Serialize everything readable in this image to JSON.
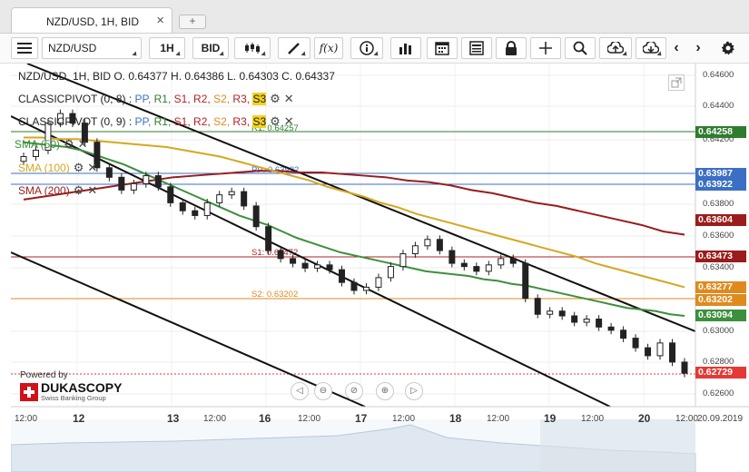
{
  "tab": {
    "title": "NZD/USD, 1H, BID",
    "close_icon": "×",
    "add_icon": "+"
  },
  "toolbar": {
    "menu_icon": "hamburger-menu-icon",
    "symbol": "NZD/USD",
    "period": "1H",
    "side": "BID",
    "buttons": [
      "chart-type-icon",
      "draw-line-icon",
      "function-icon",
      "info-icon",
      "volume-bars-icon",
      "calendar-icon",
      "news-icon",
      "lock-icon",
      "crosshair-icon",
      "zoom-icon",
      "upload-icon",
      "download-icon",
      "back-icon",
      "forward-icon",
      "settings-icon"
    ]
  },
  "legend": {
    "ohlc": "NZD/USD, 1H, BID   O. 0.64377 H. 0.64386 L. 0.64303 C. 0.64337",
    "pivot1_name": "CLASSICPIVOT (0, 8)",
    "pivot2_name": "CLASSICPIVOT (0, 9)",
    "pivot_sep": " : ",
    "pp": "PP,",
    "r1": "R1,",
    "s1": "S1,",
    "r2": "R2,",
    "s2": "S2,",
    "r3": "R3,",
    "s3": "S3",
    "sma50": "SMA (50)",
    "sma100": "SMA (100)",
    "sma200": "SMA (200)"
  },
  "colors": {
    "pp": "#3b6fc4",
    "r1": "#2e7d2e",
    "s1": "#b22222",
    "r2": "#b22222",
    "s2": "#e08a1e",
    "r3": "#b22222",
    "s3": "#e0b21e",
    "sma50": "#3d8f3d",
    "sma100": "#d4a81e",
    "sma200": "#9b1c1c",
    "current": "#e53935"
  },
  "chart_data": {
    "type": "line",
    "title": "NZD/USD, 1H, BID",
    "y_ticks": [
      "0.64600",
      "0.64400",
      "0.64200",
      "0.63800",
      "0.63600",
      "0.63400",
      "0.63000",
      "0.62800",
      "0.62600"
    ],
    "x_ticks": [
      "12:00",
      "12",
      "13",
      "12:00",
      "16",
      "12:00",
      "17",
      "12:00",
      "18",
      "12:00",
      "19",
      "12:00",
      "20",
      "12:00"
    ],
    "x_end_label": "20.09.2019",
    "levels": [
      {
        "name": "R1",
        "label": "R1: 0.64257",
        "value": 0.64257
      },
      {
        "name": "PP",
        "label": "PP: 0.63922",
        "value": 0.63922
      },
      {
        "name": "S1",
        "label": "S1: 0.63472",
        "value": 0.63472
      },
      {
        "name": "S2",
        "label": "S2: 0.63202",
        "value": 0.63202
      }
    ],
    "price_tags": [
      {
        "value": "0.64258",
        "color": "#2e7d2e"
      },
      {
        "value": "0.63987",
        "color": "#3b6fc4"
      },
      {
        "value": "0.63922",
        "color": "#3b6fc4"
      },
      {
        "value": "0.63604",
        "color": "#9b1c1c"
      },
      {
        "value": "0.63473",
        "color": "#9b1c1c"
      },
      {
        "value": "0.63277",
        "color": "#e08a1e"
      },
      {
        "value": "0.63202",
        "color": "#e08a1e"
      },
      {
        "value": "0.63094",
        "color": "#3d8f3d"
      },
      {
        "value": "0.62729",
        "color": "#e53935"
      }
    ],
    "close": [
      0.6409,
      0.6413,
      0.643,
      0.6436,
      0.643,
      0.6418,
      0.6402,
      0.6396,
      0.6388,
      0.6392,
      0.6397,
      0.639,
      0.638,
      0.6375,
      0.6372,
      0.638,
      0.6385,
      0.6387,
      0.6378,
      0.6365,
      0.635,
      0.6345,
      0.6342,
      0.6339,
      0.6341,
      0.6338,
      0.633,
      0.6325,
      0.6327,
      0.6333,
      0.634,
      0.6348,
      0.6353,
      0.6357,
      0.635,
      0.6342,
      0.634,
      0.6337,
      0.6341,
      0.6345,
      0.6342,
      0.632,
      0.631,
      0.6312,
      0.6309,
      0.6305,
      0.6307,
      0.6302,
      0.63,
      0.6295,
      0.6289,
      0.6284,
      0.6292,
      0.628,
      0.6273
    ],
    "sma50": [
      0.6418,
      0.6417,
      0.6416,
      0.6415,
      0.6413,
      0.641,
      0.6407,
      0.6404,
      0.64,
      0.6396,
      0.6392,
      0.6388,
      0.6384,
      0.638,
      0.6376,
      0.6372,
      0.6369,
      0.6366,
      0.6362,
      0.6358,
      0.6355,
      0.6352,
      0.6349,
      0.6347,
      0.6345,
      0.6343,
      0.6341,
      0.6339,
      0.6337,
      0.6336,
      0.6335,
      0.6334,
      0.6332,
      0.6331,
      0.6329,
      0.6328,
      0.6326,
      0.6324,
      0.6322,
      0.632,
      0.6318,
      0.6316,
      0.6314,
      0.6313,
      0.6312,
      0.631,
      0.6309
    ],
    "sma100": [
      0.6421,
      0.6421,
      0.642,
      0.642,
      0.6419,
      0.6418,
      0.6417,
      0.6416,
      0.6415,
      0.6413,
      0.6411,
      0.6409,
      0.6406,
      0.6403,
      0.64,
      0.6397,
      0.6394,
      0.639,
      0.6387,
      0.6384,
      0.638,
      0.6377,
      0.6373,
      0.637,
      0.6367,
      0.6364,
      0.6361,
      0.6358,
      0.6355,
      0.6352,
      0.6349,
      0.6346,
      0.6342,
      0.6339,
      0.6336,
      0.6333,
      0.633,
      0.6327
    ],
    "sma200": [
      0.6382,
      0.6384,
      0.6386,
      0.6388,
      0.639,
      0.6392,
      0.6394,
      0.6396,
      0.6397,
      0.6398,
      0.6399,
      0.64,
      0.64,
      0.6399,
      0.6399,
      0.6398,
      0.6397,
      0.6396,
      0.6394,
      0.6393,
      0.6391,
      0.6388,
      0.6386,
      0.6383,
      0.638,
      0.6378,
      0.6375,
      0.6372,
      0.6369,
      0.6366,
      0.6362,
      0.636
    ],
    "current_price": 0.62729
  },
  "watermark": {
    "powered_by": "Powered by",
    "brand": "DUKASCOPY",
    "tagline": "Swiss Banking Group"
  },
  "nav": {
    "icons": [
      "scroll-left-icon",
      "zoom-out-icon",
      "reset-icon",
      "zoom-in-icon",
      "scroll-right-icon"
    ],
    "glyphs": [
      "◁",
      "⊖",
      "⊘",
      "⊕",
      "▷"
    ]
  }
}
